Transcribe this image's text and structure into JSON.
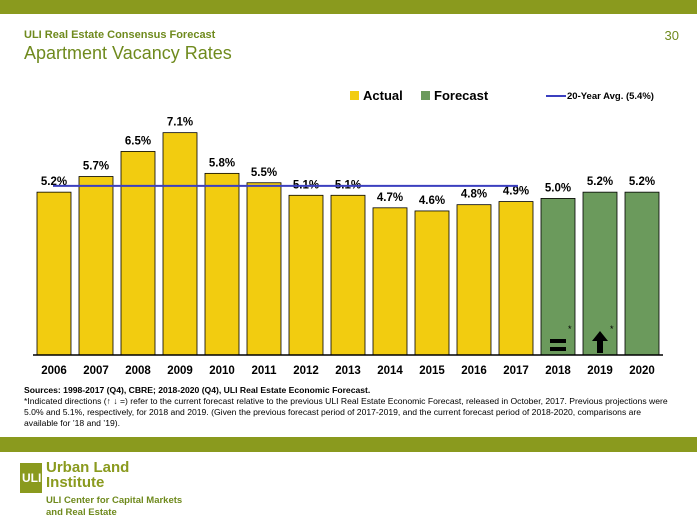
{
  "header": {
    "subtitle": "ULI Real Estate Consensus Forecast",
    "title": "Apartment Vacancy Rates",
    "page_number": "30"
  },
  "colors": {
    "actual": "#f2cc10",
    "forecast": "#6b9a5c",
    "avg_line": "#3b3fbf",
    "accent": "#8a9a1e"
  },
  "chart_data": {
    "type": "bar",
    "categories": [
      "2006",
      "2007",
      "2008",
      "2009",
      "2010",
      "2011",
      "2012",
      "2013",
      "2014",
      "2015",
      "2016",
      "2017",
      "2018",
      "2019",
      "2020"
    ],
    "series": [
      {
        "name": "Actual",
        "values": [
          5.2,
          5.7,
          6.5,
          7.1,
          5.8,
          5.5,
          5.1,
          5.1,
          4.7,
          4.6,
          4.8,
          4.9,
          null,
          null,
          null
        ]
      },
      {
        "name": "Forecast",
        "values": [
          null,
          null,
          null,
          null,
          null,
          null,
          null,
          null,
          null,
          null,
          null,
          null,
          5.0,
          5.2,
          5.2
        ]
      }
    ],
    "data_labels": [
      "5.2%",
      "5.7%",
      "6.5%",
      "7.1%",
      "5.8%",
      "5.5%",
      "5.1%",
      "5.1%",
      "4.7%",
      "4.6%",
      "4.8%",
      "4.9%",
      "5.0%",
      "5.2%",
      "5.2%"
    ],
    "reference_line": {
      "name": "20-Year Avg. (5.4%)",
      "value": 5.4,
      "x_start": "2006",
      "x_end": "2017"
    },
    "annotations": [
      {
        "category": "2018",
        "symbol": "=",
        "note": "*"
      },
      {
        "category": "2019",
        "symbol": "↑",
        "note": "*"
      }
    ],
    "ylim": [
      0,
      7.6
    ],
    "legend": {
      "position": "top",
      "actual_label": "Actual",
      "forecast_label": "Forecast"
    },
    "grid": false
  },
  "notes": {
    "sources": "Sources: 1998-2017 (Q4), CBRE; 2018-2020 (Q4), ULI Real Estate Economic Forecast.",
    "footnote": "*Indicated directions (↑ ↓ =) refer to the current forecast relative to the previous ULI Real Estate Economic Forecast, released in October, 2017.  Previous projections were 5.0% and 5.1%, respectively, for 2018 and 2019. (Given the previous forecast period of 2017-2019, and the current forecast period of 2018-2020, comparisons are available for ’18 and ’19)."
  },
  "logo": {
    "mark": "ULI",
    "name": "Urban Land Institute",
    "tagline": "ULI Center for Capital Markets and Real Estate"
  }
}
